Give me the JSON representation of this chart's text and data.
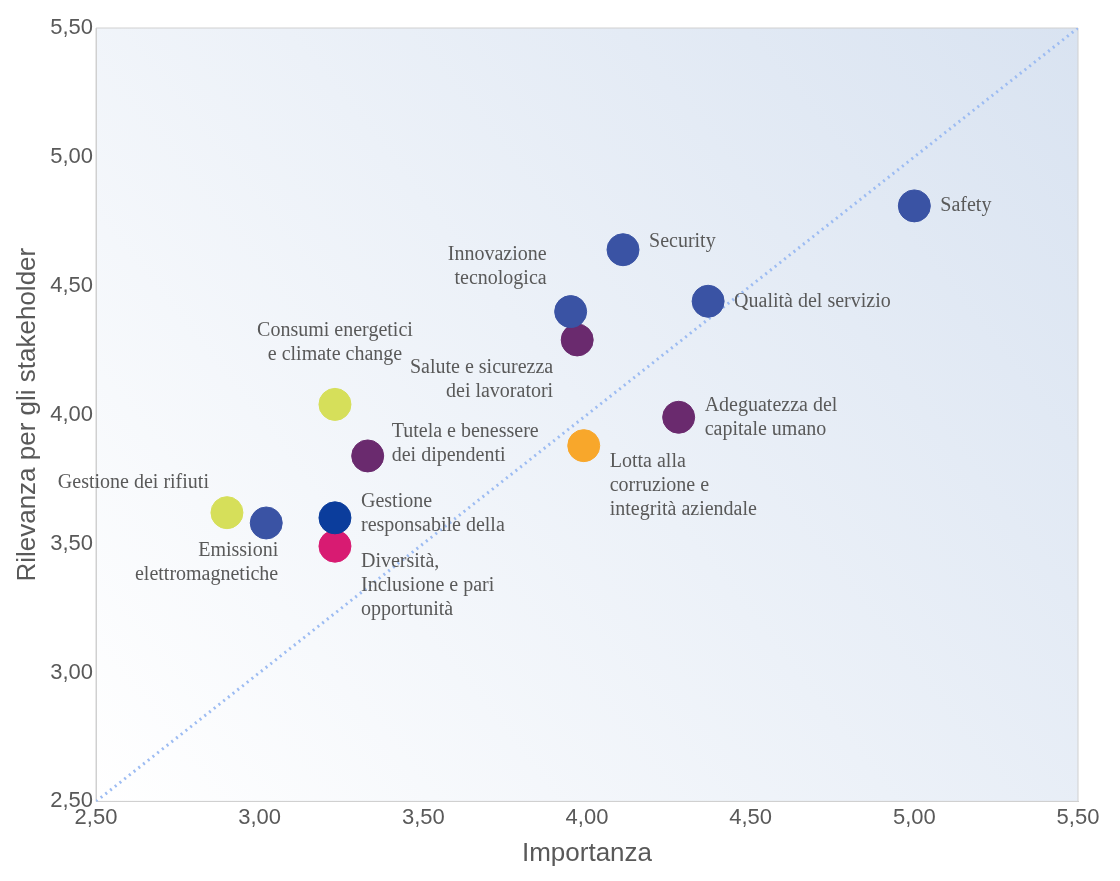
{
  "chart_data": {
    "type": "scatter",
    "xlabel": "Importanza",
    "ylabel": "Rilevanza per gli stakeholder",
    "xlim": [
      2.5,
      5.5
    ],
    "ylim": [
      2.5,
      5.5
    ],
    "xticks": [
      {
        "value": 2.5,
        "label": "2,50"
      },
      {
        "value": 3,
        "label": "3,00"
      },
      {
        "value": 3.5,
        "label": "3,50"
      },
      {
        "value": 4,
        "label": "4,00"
      },
      {
        "value": 4.5,
        "label": "4,50"
      },
      {
        "value": 5,
        "label": "5,00"
      },
      {
        "value": 5.5,
        "label": "5,50"
      }
    ],
    "yticks": [
      {
        "value": 2.5,
        "label": "2,50"
      },
      {
        "value": 3,
        "label": "3,00"
      },
      {
        "value": 3.5,
        "label": "3,50"
      },
      {
        "value": 4,
        "label": "4,00"
      },
      {
        "value": 4.5,
        "label": "4,50"
      },
      {
        "value": 5,
        "label": "5,00"
      },
      {
        "value": 5.5,
        "label": "5,50"
      }
    ],
    "grid": false,
    "legend": false,
    "marker": "circle",
    "series": [
      {
        "name": "Safety",
        "color": "#3a53a4",
        "x": [
          5.0
        ],
        "values": [
          4.81
        ]
      },
      {
        "name": "Security",
        "color": "#3a53a4",
        "x": [
          4.11
        ],
        "values": [
          4.64
        ]
      },
      {
        "name": "Qualità del servizio",
        "color": "#3a53a4",
        "x": [
          4.37
        ],
        "values": [
          4.44
        ]
      },
      {
        "name": "Innovazione tecnologica",
        "color": "#3a53a4",
        "x": [
          3.95
        ],
        "values": [
          4.4
        ]
      },
      {
        "name": "Salute e sicurezza dei lavoratori",
        "color": "#6a2a6e",
        "x": [
          3.97
        ],
        "values": [
          4.29
        ]
      },
      {
        "name": "Adeguatezza del capitale umano",
        "color": "#6a2a6e",
        "x": [
          4.28
        ],
        "values": [
          3.99
        ]
      },
      {
        "name": "Lotta alla corruzione e integrità aziendale",
        "color": "#f8a72b",
        "x": [
          3.99
        ],
        "values": [
          3.88
        ]
      },
      {
        "name": "Tutela e benessere dei dipendenti",
        "color": "#6a2a6e",
        "x": [
          3.33
        ],
        "values": [
          3.84
        ]
      },
      {
        "name": "Gestione responsabile della",
        "color": "#0b3d9c",
        "x": [
          3.23
        ],
        "values": [
          3.6
        ]
      },
      {
        "name": "Diversità, Inclusione e pari opportunità",
        "color": "#d81b72",
        "x": [
          3.23
        ],
        "values": [
          3.49
        ]
      },
      {
        "name": "Emissioni elettromagnetiche",
        "color": "#3a53a4",
        "x": [
          3.02
        ],
        "values": [
          3.58
        ]
      },
      {
        "name": "Gestione dei rifiuti",
        "color": "#d6df5a",
        "x": [
          2.9
        ],
        "values": [
          3.62
        ]
      },
      {
        "name": "Consumi energetici e climate change",
        "color": "#d6df5a",
        "x": [
          3.23
        ],
        "values": [
          4.04
        ]
      },
      {
        "type": "line",
        "line_style": "dotted",
        "marker": "none",
        "color": "#9dbcf2",
        "x": [
          2.5,
          5.5
        ],
        "values": [
          2.5,
          5.5
        ]
      }
    ]
  }
}
